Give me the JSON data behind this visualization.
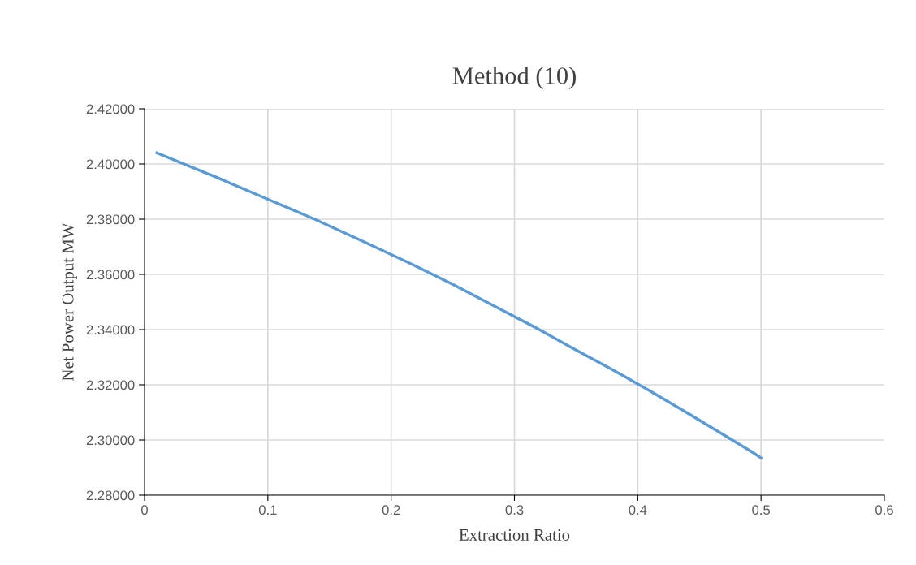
{
  "chart_data": {
    "type": "line",
    "title": "Method (10)",
    "xlabel": "Extraction Ratio",
    "ylabel": "Net Power Output MW",
    "x": [
      0.01,
      0.056,
      0.097,
      0.138,
      0.176,
      0.213,
      0.249,
      0.283,
      0.316,
      0.347,
      0.379,
      0.409,
      0.438,
      0.466,
      0.493,
      0.5
    ],
    "series": [
      {
        "color": "#5b9bd5",
        "values": [
          2.404,
          2.3956,
          2.3878,
          2.38,
          2.3722,
          2.3645,
          2.3566,
          2.3487,
          2.341,
          2.3333,
          2.3256,
          2.318,
          2.3104,
          2.3029,
          2.2956,
          2.2935
        ]
      }
    ],
    "xlim": [
      0,
      0.6
    ],
    "xticks": [
      0,
      0.1,
      0.2,
      0.3,
      0.4,
      0.5,
      0.6
    ],
    "ylim": [
      2.28,
      2.42
    ],
    "yticks": [
      {
        "value": 2.28,
        "label": "2.28000"
      },
      {
        "value": 2.3,
        "label": "2.30000"
      },
      {
        "value": 2.32,
        "label": "2.32000"
      },
      {
        "value": 2.34,
        "label": "2.34000"
      },
      {
        "value": 2.36,
        "label": "2.36000"
      },
      {
        "value": 2.38,
        "label": "2.38000"
      },
      {
        "value": 2.4,
        "label": "2.40000"
      },
      {
        "value": 2.42,
        "label": "2.42000"
      }
    ],
    "grid": true,
    "marker": "none",
    "line_style": "solid"
  }
}
